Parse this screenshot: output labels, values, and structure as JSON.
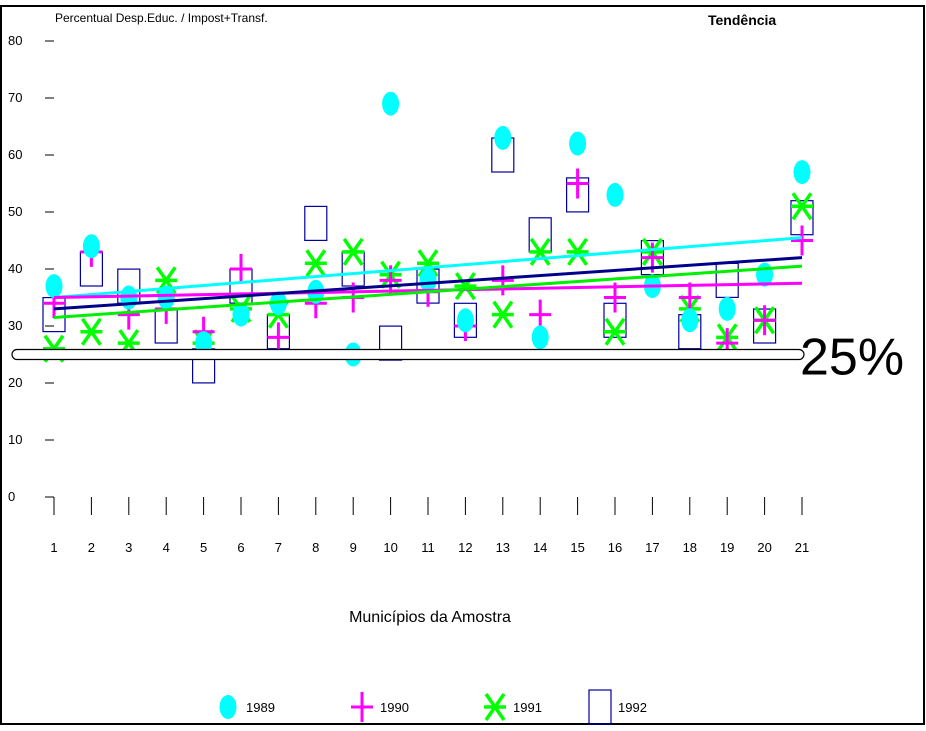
{
  "chart_data": {
    "type": "scatter",
    "title": "Percentual Desp.Educ. / Impost+Transf.",
    "corner_label": "Tendência",
    "xlabel": "Municípios da Amostra",
    "ylabel": "",
    "x_categories": [
      "1",
      "2",
      "3",
      "4",
      "5",
      "6",
      "7",
      "8",
      "9",
      "10",
      "11",
      "12",
      "13",
      "14",
      "15",
      "16",
      "17",
      "18",
      "19",
      "20",
      "21"
    ],
    "y_ticks": [
      "0",
      "10",
      "20",
      "30",
      "40",
      "50",
      "60",
      "70",
      "80"
    ],
    "ylim": [
      0,
      80
    ],
    "grid": false,
    "legend_position": "bottom",
    "reference_line": {
      "value": 25,
      "label": "25%"
    },
    "series": [
      {
        "name": "1989",
        "marker": "ellipse",
        "color": "#00ffff",
        "values": [
          37,
          44,
          35,
          35,
          27,
          32,
          34,
          36,
          25,
          69,
          38,
          31,
          63,
          28,
          62,
          53,
          37,
          31,
          33,
          39,
          57
        ]
      },
      {
        "name": "1990",
        "marker": "plus",
        "color": "#ff00ff",
        "values": [
          34,
          43,
          32,
          33,
          29,
          40,
          28,
          34,
          35,
          38,
          36,
          30,
          38,
          32,
          55,
          35,
          42,
          35,
          27,
          31,
          45
        ]
      },
      {
        "name": "1991",
        "marker": "asterisk",
        "color": "#00ff00",
        "values": [
          26,
          29,
          27,
          38,
          27,
          33,
          32,
          41,
          43,
          39,
          41,
          37,
          32,
          43,
          43,
          29,
          43,
          33,
          28,
          31,
          51
        ]
      },
      {
        "name": "1992",
        "marker": "square",
        "color": "#0000a0",
        "values": [
          32,
          40,
          37,
          30,
          23,
          37,
          29,
          48,
          40,
          27,
          37,
          31,
          60,
          46,
          53,
          31,
          42,
          29,
          38,
          30,
          49
        ]
      }
    ],
    "trend_lines": [
      {
        "name": "1989",
        "color": "#00ffff",
        "start": 35,
        "end": 45.5
      },
      {
        "name": "1990",
        "color": "#ff00ff",
        "start": 35,
        "end": 37.5
      },
      {
        "name": "1991",
        "color": "#00ee00",
        "start": 31.5,
        "end": 40.5
      },
      {
        "name": "1992",
        "color": "#00008b",
        "start": 33,
        "end": 42
      }
    ]
  }
}
